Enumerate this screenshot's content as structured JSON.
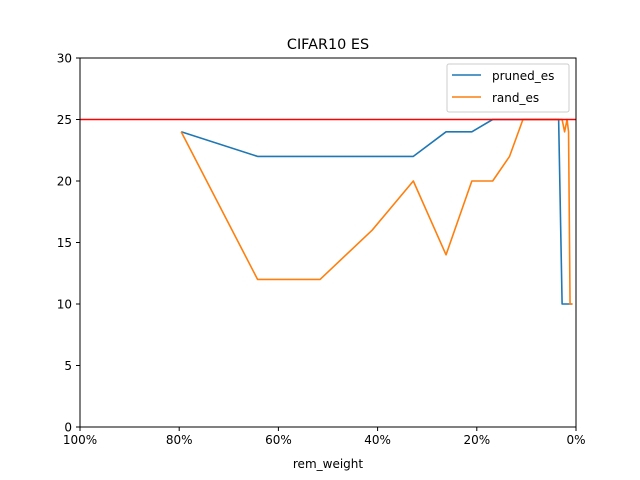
{
  "chart_data": {
    "type": "line",
    "title": "CIFAR10 ES",
    "xlabel": "rem_weight",
    "ylabel": "",
    "x_axis_reversed": true,
    "xlim": [
      100,
      0
    ],
    "ylim": [
      0,
      30
    ],
    "x_ticks": [
      100,
      80,
      60,
      40,
      20,
      0
    ],
    "x_tick_labels": [
      "100%",
      "80%",
      "60%",
      "40%",
      "20%",
      "0%"
    ],
    "y_ticks": [
      0,
      5,
      10,
      15,
      20,
      25,
      30
    ],
    "y_tick_labels": [
      "0",
      "5",
      "10",
      "15",
      "20",
      "25",
      "30"
    ],
    "grid": false,
    "legend_position": "top-right",
    "series": [
      {
        "name": "pruned_es",
        "color": "#1f77b4",
        "x": [
          79.6,
          64.2,
          51.6,
          41.1,
          32.8,
          26.2,
          21.0,
          16.8,
          13.4,
          10.7,
          8.6,
          6.9,
          5.5,
          4.4,
          3.5,
          2.8,
          2.3,
          1.8,
          1.5,
          1.2,
          0.9,
          0.7
        ],
        "y": [
          24,
          22,
          22,
          22,
          22,
          24,
          24,
          25,
          25,
          25,
          25,
          25,
          25,
          25,
          25,
          10,
          10,
          10,
          10,
          10,
          10,
          10
        ]
      },
      {
        "name": "rand_es",
        "color": "#ff7f0e",
        "x": [
          79.6,
          64.2,
          51.6,
          41.1,
          32.8,
          26.2,
          21.0,
          16.8,
          13.4,
          10.7,
          8.6,
          6.9,
          5.5,
          4.4,
          3.5,
          2.8,
          2.3,
          1.8,
          1.5,
          1.2,
          0.9,
          0.7
        ],
        "y": [
          24,
          12,
          12,
          16,
          20,
          14,
          20,
          20,
          22,
          25,
          25,
          25,
          25,
          25,
          25,
          25,
          24,
          25,
          24,
          10,
          10,
          10
        ]
      }
    ],
    "reference_lines": [
      {
        "orientation": "horizontal",
        "y": 25,
        "color": "#ff0000"
      }
    ]
  }
}
